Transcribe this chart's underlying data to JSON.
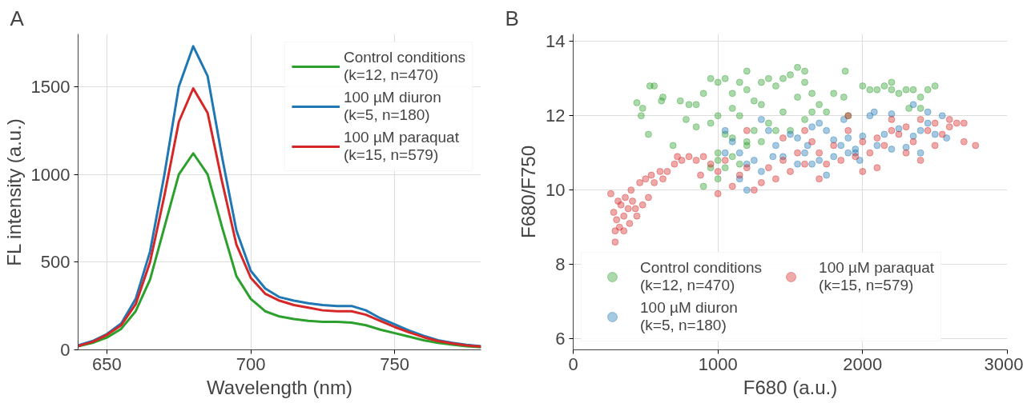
{
  "chart_data": [
    {
      "type": "line",
      "title": "A",
      "xlabel": "Wavelength (nm)",
      "ylabel": "FL intensity (a.u.)",
      "xlim": [
        640,
        780
      ],
      "ylim": [
        0,
        1800
      ],
      "xticks": [
        650,
        700,
        750
      ],
      "yticks": [
        0,
        500,
        1000,
        1500
      ],
      "grid": true,
      "legend": "top right",
      "x": [
        640,
        645,
        650,
        655,
        660,
        665,
        670,
        675,
        680,
        685,
        690,
        695,
        700,
        705,
        710,
        715,
        720,
        725,
        730,
        735,
        740,
        745,
        750,
        755,
        760,
        765,
        770,
        775,
        780
      ],
      "series": [
        {
          "name": "Control conditions\n(k=12, n=470)",
          "color": "#2ca02c",
          "values": [
            20,
            40,
            70,
            120,
            220,
            400,
            700,
            1000,
            1120,
            1000,
            700,
            420,
            290,
            220,
            190,
            175,
            165,
            160,
            160,
            155,
            140,
            115,
            95,
            75,
            55,
            40,
            30,
            20,
            15
          ]
        },
        {
          "name": "100 µM diuron\n(k=5, n=180)",
          "color": "#1f77b4",
          "values": [
            25,
            50,
            90,
            150,
            290,
            560,
            1000,
            1500,
            1730,
            1560,
            1100,
            680,
            450,
            350,
            300,
            280,
            265,
            255,
            250,
            250,
            225,
            180,
            145,
            110,
            80,
            55,
            40,
            28,
            20
          ]
        },
        {
          "name": "100 µM paraquat\n(k=15, n=579)",
          "color": "#d62728",
          "values": [
            22,
            45,
            85,
            140,
            260,
            500,
            880,
            1300,
            1490,
            1350,
            960,
            600,
            410,
            320,
            280,
            255,
            240,
            225,
            220,
            220,
            200,
            165,
            130,
            100,
            72,
            50,
            36,
            25,
            18
          ]
        }
      ]
    },
    {
      "type": "scatter",
      "title": "B",
      "xlabel": "F680 (a.u.)",
      "ylabel": "F680/F750",
      "xlim": [
        0,
        3000
      ],
      "ylim": [
        5.7,
        14.2
      ],
      "xticks": [
        0,
        1000,
        2000,
        3000
      ],
      "yticks": [
        6,
        8,
        10,
        12,
        14
      ],
      "grid": true,
      "legend": "bottom left",
      "marker": "circle",
      "series": [
        {
          "name": "Control conditions\n(k=12, n=470)",
          "color": "#2ca02c",
          "x": [
            440,
            480,
            470,
            530,
            560,
            620,
            610,
            520,
            740,
            690,
            780,
            800,
            850,
            900,
            950,
            1000,
            1050,
            1150,
            1200,
            1100,
            1000,
            950,
            1050,
            1150,
            1250,
            1300,
            1350,
            1400,
            1450,
            1500,
            1550,
            1600,
            1550,
            1600,
            1650,
            1450,
            1350,
            1300,
            1250,
            1200,
            1100,
            1000,
            950,
            900,
            1000,
            1050,
            1100,
            1000,
            1150,
            1200,
            1300,
            1400,
            1500,
            1600,
            1700,
            1800,
            1870,
            1880,
            2000,
            2050,
            2100,
            2150,
            2200,
            2250,
            2300,
            2350,
            2450,
            2500,
            2200,
            2400,
            2320,
            2400,
            1900,
            1750,
            850,
            1100,
            1200,
            1650
          ],
          "values": [
            12.35,
            12.2,
            12.0,
            12.8,
            12.8,
            12.5,
            12.4,
            11.5,
            12.4,
            11.2,
            11.9,
            12.3,
            12.3,
            12.6,
            13.0,
            12.9,
            13.0,
            12.9,
            12.7,
            12.2,
            12.0,
            11.8,
            11.5,
            12.0,
            12.4,
            12.9,
            13.0,
            12.8,
            13.0,
            13.1,
            13.3,
            13.2,
            12.5,
            12.9,
            12.6,
            12.1,
            11.8,
            12.3,
            11.6,
            11.3,
            11.4,
            11.0,
            10.6,
            10.1,
            10.3,
            10.6,
            10.9,
            10.8,
            10.7,
            11.2,
            11.3,
            11.6,
            11.6,
            11.9,
            12.3,
            12.6,
            12.5,
            13.2,
            12.8,
            12.7,
            12.7,
            12.8,
            12.7,
            12.6,
            12.7,
            12.7,
            12.7,
            12.8,
            12.9,
            12.5,
            12.2,
            12.2,
            12.0,
            12.1,
            11.7,
            12.6,
            13.2,
            12.1
          ]
        },
        {
          "name": "100 µM diuron\n(k=5, n=180)",
          "color": "#1f77b4",
          "x": [
            1050,
            1100,
            1150,
            1200,
            1250,
            1300,
            1350,
            1400,
            1450,
            1500,
            1550,
            1600,
            1650,
            1700,
            1750,
            1800,
            1850,
            1900,
            1950,
            2000,
            1900,
            2100,
            2150,
            2200,
            2250,
            2300,
            2350,
            2400,
            2450,
            2500,
            2550,
            1870,
            1700,
            1800,
            1950,
            2050,
            2080,
            2350,
            2450,
            1300,
            1650,
            1550,
            1200,
            1150,
            1380,
            1620,
            1750,
            1980,
            2200,
            1050,
            2580,
            2400
          ],
          "values": [
            11.6,
            11.3,
            11.0,
            10.7,
            10.8,
            10.5,
            11.6,
            11.2,
            10.9,
            11.5,
            11.4,
            11.0,
            10.7,
            10.8,
            10.4,
            10.9,
            11.2,
            11.4,
            11.1,
            11.45,
            11.0,
            11.2,
            11.5,
            12.05,
            11.65,
            11.15,
            11.45,
            11.6,
            11.8,
            11.5,
            12.0,
            11.9,
            11.8,
            11.35,
            11.0,
            12.0,
            12.1,
            12.3,
            12.1,
            11.9,
            11.7,
            10.7,
            10.0,
            10.3,
            10.9,
            11.2,
            11.6,
            10.8,
            11.1,
            11.0,
            11.4,
            11.0
          ]
        },
        {
          "name": "100 µM paraquat\n(k=15, n=579)",
          "color": "#d62728",
          "x": [
            260,
            280,
            290,
            290,
            300,
            320,
            330,
            350,
            360,
            380,
            390,
            400,
            410,
            430,
            440,
            460,
            480,
            500,
            520,
            540,
            560,
            600,
            620,
            650,
            700,
            720,
            750,
            800,
            850,
            900,
            950,
            1000,
            1050,
            1100,
            1150,
            1200,
            1250,
            1300,
            1350,
            1400,
            1450,
            1500,
            1550,
            1600,
            1650,
            1700,
            1750,
            1800,
            1850,
            1900,
            1950,
            2000,
            2050,
            2100,
            2150,
            2200,
            2250,
            2300,
            2350,
            2400,
            2450,
            2500,
            2550,
            2600,
            2650,
            2700,
            2780,
            2500,
            2400,
            2300,
            2100,
            2000,
            1700,
            1900,
            2200,
            1200,
            880,
            1000,
            350,
            310,
            1450,
            1600,
            2600,
            2700
          ],
          "values": [
            9.9,
            9.4,
            8.9,
            8.6,
            9.2,
            9.0,
            9.6,
            9.3,
            9.8,
            9.5,
            9.1,
            10.0,
            9.7,
            9.5,
            9.3,
            10.2,
            9.6,
            10.3,
            9.8,
            10.4,
            10.2,
            10.5,
            10.3,
            10.5,
            10.7,
            10.9,
            10.8,
            10.9,
            10.8,
            10.9,
            10.7,
            10.5,
            10.8,
            10.1,
            10.4,
            10.6,
            10.0,
            10.2,
            10.6,
            10.3,
            10.8,
            10.5,
            11.0,
            10.7,
            11.3,
            11.0,
            10.7,
            11.2,
            10.8,
            11.6,
            10.9,
            11.3,
            11.0,
            11.4,
            11.2,
            11.6,
            11.5,
            11.7,
            11.3,
            11.9,
            11.6,
            11.8,
            11.5,
            11.7,
            11.8,
            11.3,
            11.2,
            11.2,
            10.8,
            11.0,
            10.6,
            10.5,
            10.3,
            12.0,
            11.9,
            11.6,
            10.4,
            9.9,
            8.9,
            9.7,
            11.4,
            11.6,
            11.9,
            11.8
          ]
        }
      ]
    }
  ]
}
